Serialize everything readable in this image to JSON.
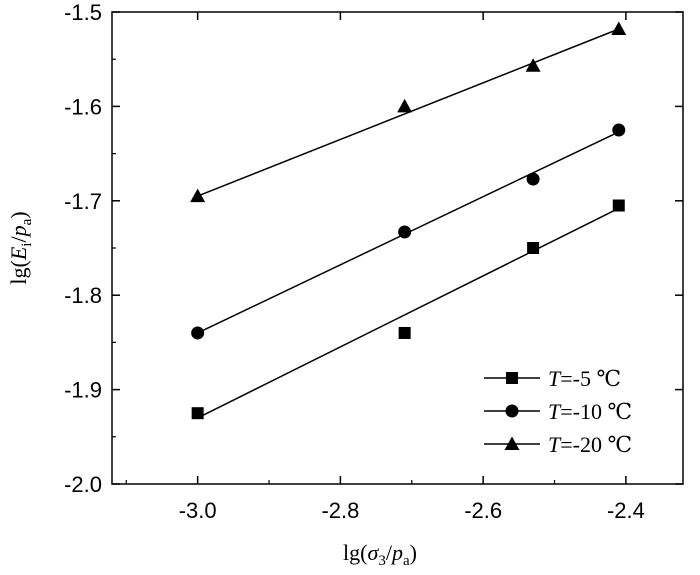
{
  "chart_data": {
    "type": "scatter",
    "xlabel_parts": {
      "prefix": "lg(",
      "var": "σ",
      "var_sub": "3",
      "slash": "/",
      "p": "p",
      "p_sub": "a",
      "suffix": ")"
    },
    "ylabel_parts": {
      "prefix": "lg(",
      "var": "E",
      "var_sub": "i",
      "slash": "/",
      "p": "p",
      "p_sub": "a",
      "suffix": ")"
    },
    "xlim": [
      -3.12,
      -2.32
    ],
    "ylim": [
      -2.0,
      -1.5
    ],
    "xticks": [
      -3.0,
      -2.8,
      -2.6,
      -2.4
    ],
    "xtick_labels": [
      "-3.0",
      "-2.8",
      "-2.6",
      "-2.4"
    ],
    "yticks": [
      -2.0,
      -1.9,
      -1.8,
      -1.7,
      -1.6,
      -1.5
    ],
    "ytick_labels": [
      "-2.0",
      "-1.9",
      "-1.8",
      "-1.7",
      "-1.6",
      "-1.5"
    ],
    "grid": false,
    "legend_position": "bottom-right",
    "series": [
      {
        "name": "T=-5 ℃",
        "legend_var": "T",
        "legend_rest": "=-5 ℃",
        "marker": "square",
        "x": [
          -3.0,
          -2.71,
          -2.53,
          -2.41
        ],
        "y": [
          -1.925,
          -1.84,
          -1.75,
          -1.705
        ],
        "fit": {
          "x": [
            -3.0,
            -2.41
          ],
          "y": [
            -1.93,
            -1.708
          ]
        }
      },
      {
        "name": "T=-10 ℃",
        "legend_var": "T",
        "legend_rest": "=-10 ℃",
        "marker": "circle",
        "x": [
          -3.0,
          -2.71,
          -2.53,
          -2.41
        ],
        "y": [
          -1.84,
          -1.733,
          -1.677,
          -1.625
        ],
        "fit": {
          "x": [
            -3.0,
            -2.41
          ],
          "y": [
            -1.84,
            -1.627
          ]
        }
      },
      {
        "name": "T=-20 ℃",
        "legend_var": "T",
        "legend_rest": "=-20 ℃",
        "marker": "triangle",
        "x": [
          -3.0,
          -2.71,
          -2.53,
          -2.41
        ],
        "y": [
          -1.695,
          -1.6,
          -1.557,
          -1.518
        ],
        "fit": {
          "x": [
            -3.0,
            -2.41
          ],
          "y": [
            -1.695,
            -1.518
          ]
        }
      }
    ]
  }
}
